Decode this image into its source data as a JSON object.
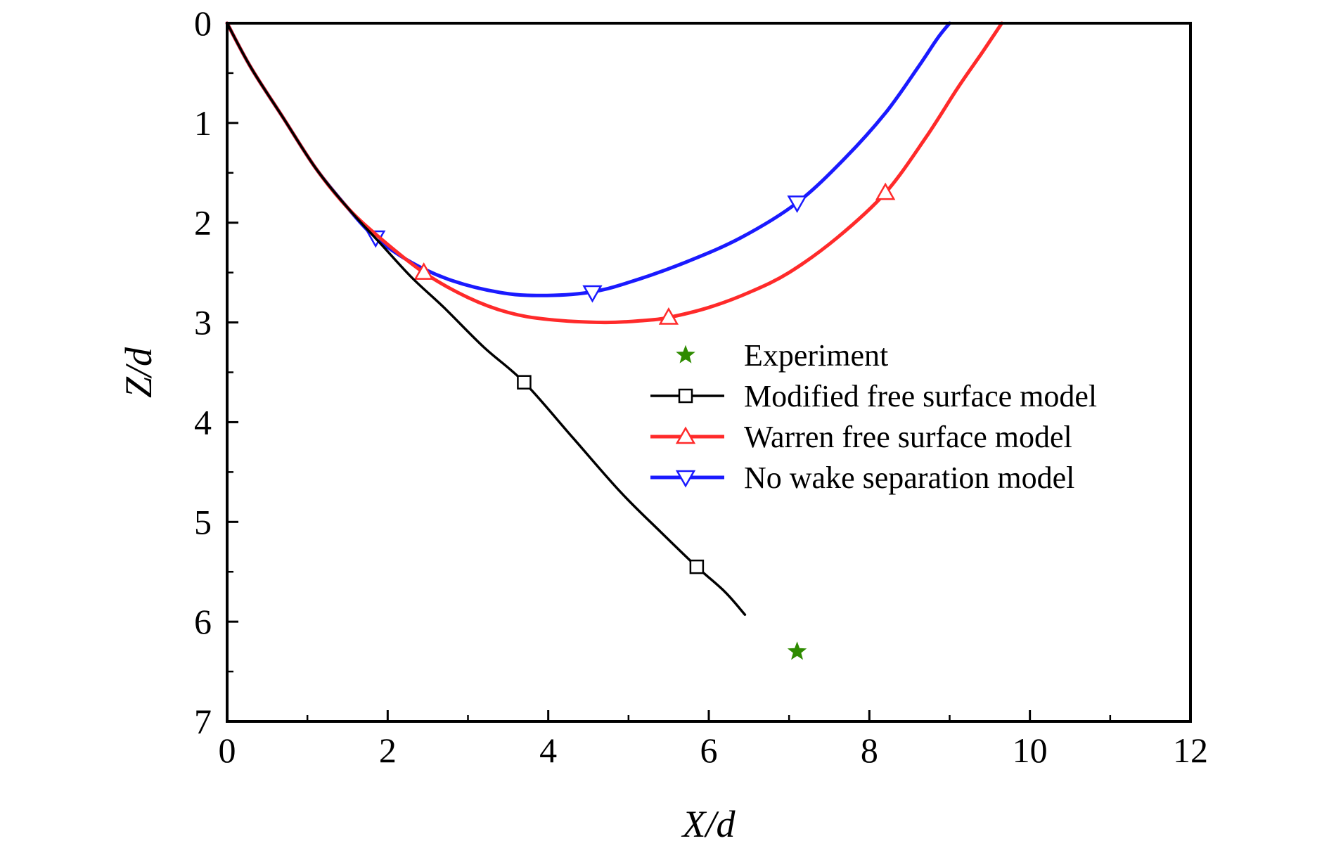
{
  "chart_data": {
    "type": "line",
    "xlabel": "X/d",
    "ylabel": "Z/d",
    "xlim": [
      0,
      12
    ],
    "ylim": [
      0,
      7
    ],
    "y_inverted": true,
    "x_ticks": [
      "0",
      "2",
      "4",
      "6",
      "8",
      "10",
      "12"
    ],
    "y_ticks": [
      "0",
      "1",
      "2",
      "3",
      "4",
      "5",
      "6",
      "7"
    ],
    "grid": false,
    "legend_position": "center-right",
    "series": [
      {
        "name": "Experiment",
        "style": "scatter",
        "marker": "star",
        "color": "#2e8b00",
        "points": [
          [
            7.1,
            6.3
          ]
        ]
      },
      {
        "name": "Modified free surface model",
        "style": "line",
        "marker": "square",
        "color": "#000000",
        "points": [
          [
            0.0,
            0.0
          ],
          [
            0.3,
            0.45
          ],
          [
            0.7,
            0.95
          ],
          [
            1.1,
            1.45
          ],
          [
            1.5,
            1.85
          ],
          [
            1.9,
            2.2
          ],
          [
            2.3,
            2.55
          ],
          [
            2.7,
            2.85
          ],
          [
            3.2,
            3.25
          ],
          [
            3.7,
            3.6
          ],
          [
            4.3,
            4.15
          ],
          [
            4.9,
            4.7
          ],
          [
            5.4,
            5.1
          ],
          [
            5.85,
            5.45
          ],
          [
            6.2,
            5.7
          ],
          [
            6.45,
            5.93
          ]
        ],
        "markers": [
          [
            3.7,
            3.6
          ],
          [
            5.85,
            5.45
          ]
        ]
      },
      {
        "name": "Warren free surface model",
        "style": "line",
        "marker": "triangle-up",
        "color": "#ff2a2a",
        "points": [
          [
            0.0,
            0.0
          ],
          [
            0.3,
            0.45
          ],
          [
            0.7,
            0.95
          ],
          [
            1.1,
            1.45
          ],
          [
            1.5,
            1.85
          ],
          [
            1.9,
            2.15
          ],
          [
            2.45,
            2.5
          ],
          [
            3.0,
            2.75
          ],
          [
            3.5,
            2.9
          ],
          [
            4.0,
            2.97
          ],
          [
            4.7,
            3.0
          ],
          [
            5.2,
            2.98
          ],
          [
            5.5,
            2.95
          ],
          [
            6.0,
            2.85
          ],
          [
            6.5,
            2.7
          ],
          [
            7.0,
            2.5
          ],
          [
            7.6,
            2.15
          ],
          [
            8.2,
            1.7
          ],
          [
            8.7,
            1.15
          ],
          [
            9.1,
            0.65
          ],
          [
            9.4,
            0.3
          ],
          [
            9.65,
            0.0
          ]
        ],
        "markers": [
          [
            2.45,
            2.5
          ],
          [
            5.5,
            2.95
          ],
          [
            8.2,
            1.7
          ]
        ]
      },
      {
        "name": "No wake separation model",
        "style": "line",
        "marker": "triangle-down",
        "color": "#1a1aff",
        "points": [
          [
            0.0,
            0.0
          ],
          [
            0.3,
            0.45
          ],
          [
            0.7,
            0.95
          ],
          [
            1.1,
            1.45
          ],
          [
            1.5,
            1.85
          ],
          [
            1.85,
            2.15
          ],
          [
            2.3,
            2.4
          ],
          [
            2.8,
            2.58
          ],
          [
            3.4,
            2.7
          ],
          [
            3.9,
            2.73
          ],
          [
            4.5,
            2.7
          ],
          [
            5.0,
            2.6
          ],
          [
            5.7,
            2.4
          ],
          [
            6.4,
            2.15
          ],
          [
            7.1,
            1.8
          ],
          [
            7.7,
            1.35
          ],
          [
            8.2,
            0.9
          ],
          [
            8.6,
            0.45
          ],
          [
            8.85,
            0.15
          ],
          [
            9.0,
            0.0
          ]
        ],
        "markers": [
          [
            1.85,
            2.15
          ],
          [
            4.55,
            2.7
          ],
          [
            7.1,
            1.8
          ]
        ]
      }
    ]
  }
}
